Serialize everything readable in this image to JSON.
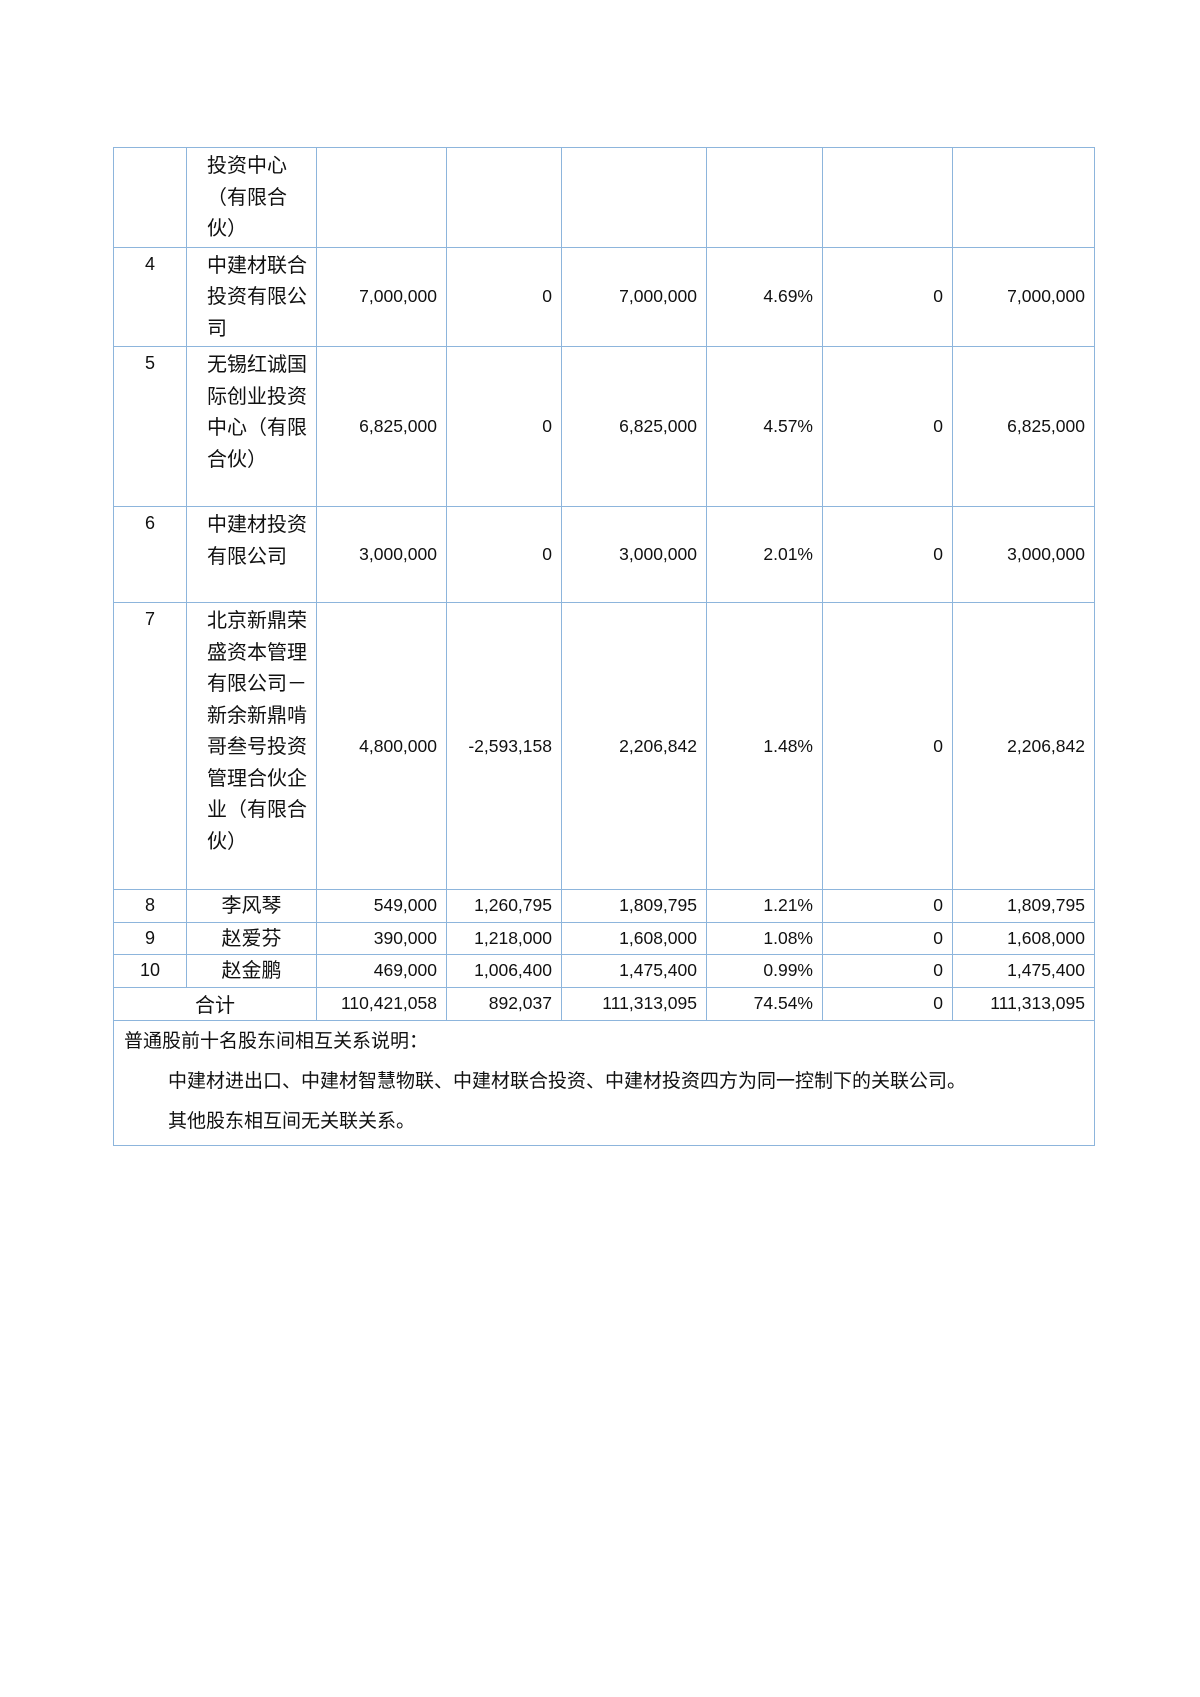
{
  "rows": [
    {
      "idx": "",
      "name": "投资中心（有限合伙）",
      "c1": "",
      "c2": "",
      "c3": "",
      "c4": "",
      "c5": "",
      "c6": ""
    },
    {
      "idx": "4",
      "name": "中建材联合投资有限公司",
      "c1": "7,000,000",
      "c2": "0",
      "c3": "7,000,000",
      "c4": "4.69%",
      "c5": "0",
      "c6": "7,000,000"
    },
    {
      "idx": "5",
      "name": "无锡红诚国际创业投资中心（有限合伙）",
      "c1": "6,825,000",
      "c2": "0",
      "c3": "6,825,000",
      "c4": "4.57%",
      "c5": "0",
      "c6": "6,825,000"
    },
    {
      "idx": "6",
      "name": "中建材投资有限公司",
      "c1": "3,000,000",
      "c2": "0",
      "c3": "3,000,000",
      "c4": "2.01%",
      "c5": "0",
      "c6": "3,000,000"
    },
    {
      "idx": "7",
      "name": "北京新鼎荣盛资本管理有限公司－新余新鼎啃哥叁号投资管理合伙企业（有限合伙）",
      "c1": "4,800,000",
      "c2": "-2,593,158",
      "c3": "2,206,842",
      "c4": "1.48%",
      "c5": "0",
      "c6": "2,206,842"
    },
    {
      "idx": "8",
      "name": "李风琴",
      "c1": "549,000",
      "c2": "1,260,795",
      "c3": "1,809,795",
      "c4": "1.21%",
      "c5": "0",
      "c6": "1,809,795"
    },
    {
      "idx": "9",
      "name": "赵爱芬",
      "c1": "390,000",
      "c2": "1,218,000",
      "c3": "1,608,000",
      "c4": "1.08%",
      "c5": "0",
      "c6": "1,608,000"
    },
    {
      "idx": "10",
      "name": "赵金鹏",
      "c1": "469,000",
      "c2": "1,006,400",
      "c3": "1,475,400",
      "c4": "0.99%",
      "c5": "0",
      "c6": "1,475,400"
    }
  ],
  "total": {
    "label": "合计",
    "c1": "110,421,058",
    "c2": "892,037",
    "c3": "111,313,095",
    "c4": "74.54%",
    "c5": "0",
    "c6": "111,313,095"
  },
  "note": {
    "title": "普通股前十名股东间相互关系说明：",
    "line1": "中建材进出口、中建材智慧物联、中建材联合投资、中建材投资四方为同一控制下的关联公司。",
    "line2": "其他股东相互间无关联关系。"
  },
  "colors": {
    "border": "#8db5dc"
  }
}
